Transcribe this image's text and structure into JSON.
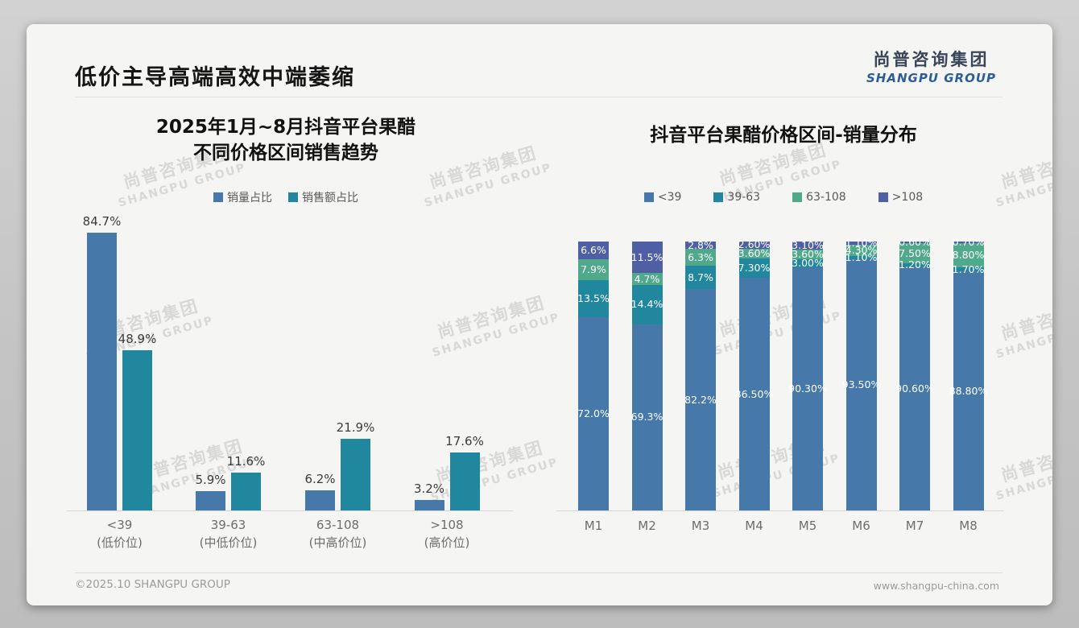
{
  "page": {
    "title": "低价主导高端高效中端萎缩",
    "footer_left": "©2025.10 SHANGPU GROUP",
    "footer_right": "www.shangpu-china.com"
  },
  "logo": {
    "cn": "尚普咨询集团",
    "en": "SHANGPU GROUP"
  },
  "watermark": {
    "cn": "尚普咨询集团",
    "en": "SHANGPU GROUP"
  },
  "colors": {
    "series_blue": "#4678aa",
    "series_teal": "#20879f",
    "series_green": "#4fa98a",
    "series_darkblue": "#4e5fa3",
    "slide_background": "#f5f5f3",
    "canvas_background": "#c6c6c6"
  },
  "chart_data": [
    {
      "type": "bar",
      "title_line1": "2025年1月~8月抖音平台果醋",
      "title_line2": "不同价格区间销售趋势",
      "categories": [
        {
          "range": "<39",
          "tier": "(低价位)"
        },
        {
          "range": "39-63",
          "tier": "(中低价位)"
        },
        {
          "range": "63-108",
          "tier": "(中高价位)"
        },
        {
          "range": ">108",
          "tier": "(高价位)"
        }
      ],
      "series": [
        {
          "name": "销量占比",
          "color": "#4678aa",
          "values": [
            84.7,
            5.9,
            6.2,
            3.2
          ],
          "labels": [
            "84.7%",
            "5.9%",
            "6.2%",
            "3.2%"
          ]
        },
        {
          "name": "销售额占比",
          "color": "#20879f",
          "values": [
            48.9,
            11.6,
            21.9,
            17.6
          ],
          "labels": [
            "48.9%",
            "11.6%",
            "21.9%",
            "17.6%"
          ]
        }
      ],
      "ylim": [
        0,
        100
      ],
      "grid": false,
      "legend_position": "top"
    },
    {
      "type": "stacked-bar",
      "title": "抖音平台果醋价格区间-销量分布",
      "categories": [
        "M1",
        "M2",
        "M3",
        "M4",
        "M5",
        "M6",
        "M7",
        "M8"
      ],
      "stack_order": "bottom-to-top",
      "series": [
        {
          "name": "<39",
          "color": "#4678aa",
          "values": [
            72.0,
            69.3,
            82.2,
            86.5,
            90.3,
            93.5,
            90.6,
            88.8
          ],
          "labels": [
            "72.0%",
            "69.3%",
            "82.2%",
            "86.50%",
            "90.30%",
            "93.50%",
            "90.60%",
            "88.80%"
          ]
        },
        {
          "name": "39-63",
          "color": "#20879f",
          "values": [
            13.5,
            14.4,
            8.7,
            7.3,
            3.0,
            1.1,
            1.2,
            1.7
          ],
          "labels": [
            "13.5%",
            "14.4%",
            "8.7%",
            "7.30%",
            "3.00%",
            "1.10%",
            "1.20%",
            "1.70%"
          ]
        },
        {
          "name": "63-108",
          "color": "#4fa98a",
          "values": [
            7.9,
            4.7,
            6.3,
            3.6,
            3.6,
            4.3,
            7.5,
            8.8
          ],
          "labels": [
            "7.9%",
            "4.7%",
            "6.3%",
            "3.60%",
            "3.60%",
            "4.30%",
            "7.50%",
            "8.80%"
          ]
        },
        {
          "name": ">108",
          "color": "#4e5fa3",
          "values": [
            6.6,
            11.5,
            2.8,
            2.6,
            3.1,
            1.1,
            0.6,
            0.7
          ],
          "labels": [
            "6.6%",
            "11.5%",
            "2.8%",
            "2.60%",
            "3.10%",
            "1.10%",
            "0.60%",
            "0.70%"
          ]
        }
      ],
      "ylim": [
        0,
        100
      ],
      "grid": false,
      "legend_position": "top"
    }
  ]
}
